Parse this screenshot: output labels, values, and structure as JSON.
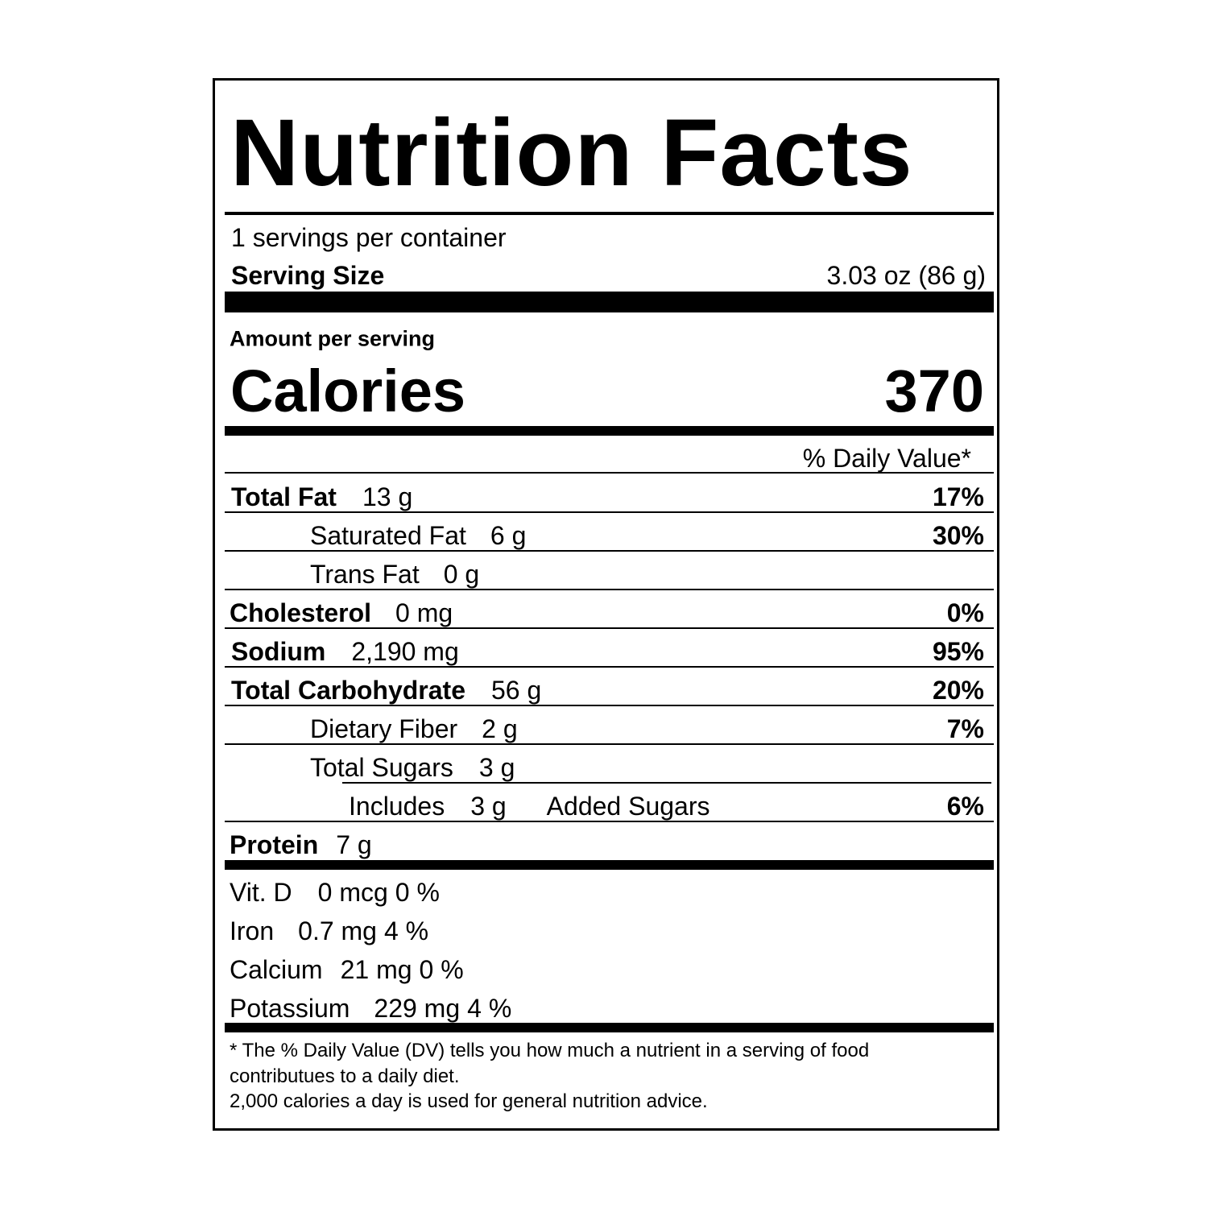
{
  "title": "Nutrition Facts",
  "servings": "1 servings per container",
  "serving_size": {
    "label": "Serving Size",
    "value": "3.03 oz (86 g)"
  },
  "amount_per_serving": "Amount per serving",
  "calories": {
    "label": "Calories",
    "value": "370"
  },
  "dv_header": "% Daily Value*",
  "rows": [
    {
      "label": "Total Fat",
      "amount": "13 g",
      "dv": "17%"
    },
    {
      "label": "Saturated Fat",
      "amount": "6 g",
      "dv": "30%"
    },
    {
      "label": "Trans Fat",
      "amount": "0 g"
    },
    {
      "label": "Cholesterol",
      "amount": "0 mg",
      "dv": "0%"
    },
    {
      "label": "Sodium",
      "amount": "2,190 mg",
      "dv": "95%"
    },
    {
      "label": "Total Carbohydrate",
      "amount": "56 g",
      "dv": "20%"
    },
    {
      "label": "Dietary Fiber",
      "amount": "2 g",
      "dv": "7%"
    },
    {
      "label": "Total Sugars",
      "amount": "3 g"
    },
    {
      "label": "Includes",
      "amount": "3 g",
      "extra": "Added Sugars",
      "dv": "6%"
    },
    {
      "label": "Protein",
      "amount": "7 g"
    }
  ],
  "vitamins": [
    {
      "name": "Vit. D",
      "amount": "0 mcg",
      "dv": "0 %"
    },
    {
      "name": "Iron",
      "amount": "0.7 mg",
      "dv": "4 %"
    },
    {
      "name": "Calcium",
      "amount": "21 mg",
      "dv": "0 %"
    },
    {
      "name": "Potassium",
      "amount": "229 mg",
      "dv": "4 %"
    }
  ],
  "footnote": [
    "* The % Daily Value (DV) tells you how much a nutrient in a serving of food",
    "contributues to a daily diet.",
    "2,000 calories a day is used for general nutrition advice."
  ]
}
